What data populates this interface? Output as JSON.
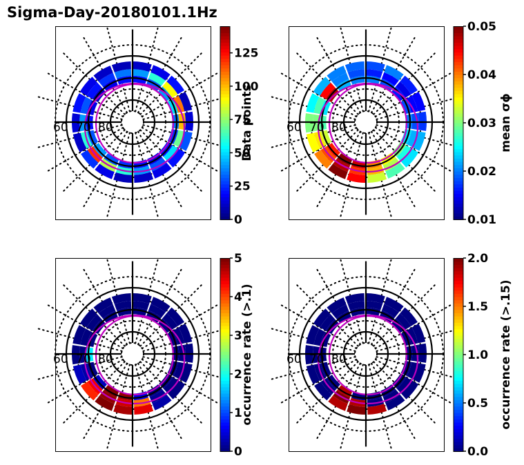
{
  "figure": {
    "title": "Sigma-Day-20180101.1Hz"
  },
  "chart_data": [
    {
      "type": "heatmap",
      "projection": "polar (magnetic latitude / MLT)",
      "title": "",
      "colorbar": {
        "label": "Data points",
        "colormap": "jet",
        "range": [
          0,
          145
        ],
        "ticks": [
          0,
          25,
          50,
          75,
          100,
          125
        ],
        "tick_labels": [
          "0",
          "25",
          "50",
          "75",
          "100",
          "125"
        ]
      },
      "lat_labels": [
        "60",
        "70",
        "80"
      ],
      "lat_circles": [
        50,
        60,
        70,
        80
      ],
      "oval_contours": 2,
      "bins": {
        "outer_ring": [
          10,
          15,
          20,
          8,
          12,
          30,
          20,
          15,
          10,
          8,
          15,
          25,
          10,
          12,
          20,
          15,
          10,
          8
        ],
        "mid_ring": [
          40,
          60,
          90,
          110,
          100,
          70,
          50,
          30,
          40,
          60,
          80,
          120,
          60,
          40,
          30,
          20,
          25,
          35
        ],
        "inner_ring": [
          20,
          30,
          40,
          50,
          35,
          25,
          20,
          15,
          20,
          25,
          30,
          40,
          30,
          20,
          15,
          10,
          15,
          20
        ]
      }
    },
    {
      "type": "heatmap",
      "projection": "polar (magnetic latitude / MLT)",
      "title": "",
      "colorbar": {
        "label": "mean σϕ",
        "colormap": "jet",
        "range": [
          0.01,
          0.05
        ],
        "ticks": [
          0.01,
          0.02,
          0.03,
          0.04,
          0.05
        ],
        "tick_labels": [
          "0.01",
          "0.02",
          "0.03",
          "0.04",
          "0.05"
        ]
      },
      "lat_labels": [
        "60",
        "70",
        "80"
      ],
      "lat_circles": [
        50,
        60,
        70,
        80
      ],
      "oval_contours": 2,
      "bins": {
        "outer_ring": [
          0.018,
          0.02,
          0.016,
          0.015,
          0.017,
          0.022,
          0.024,
          0.028,
          0.033,
          0.045,
          0.05,
          0.04,
          0.035,
          0.03,
          0.025,
          0.022,
          0.02,
          0.019
        ],
        "mid_ring": [
          0.016,
          0.015,
          0.014,
          0.015,
          0.018,
          0.022,
          0.026,
          0.032,
          0.038,
          0.043,
          0.048,
          0.042,
          0.036,
          0.03,
          0.028,
          0.045,
          0.02,
          0.018
        ],
        "inner_ring": [
          0.02,
          0.018,
          0.016,
          0.018,
          0.02,
          0.024,
          0.03,
          0.035,
          0.04,
          0.047,
          0.05,
          0.044,
          0.033,
          0.028,
          0.024,
          0.048,
          0.022,
          0.02
        ]
      }
    },
    {
      "type": "heatmap",
      "projection": "polar (magnetic latitude / MLT)",
      "title": "",
      "colorbar": {
        "label": "occurrence rate (>.1)",
        "colormap": "jet",
        "range": [
          0,
          5
        ],
        "ticks": [
          0,
          1,
          2,
          3,
          4,
          5
        ],
        "tick_labels": [
          "0",
          "1",
          "2",
          "3",
          "4",
          "5"
        ]
      },
      "lat_labels": [
        "60",
        "70",
        "80"
      ],
      "lat_circles": [
        50,
        60,
        70,
        80
      ],
      "oval_contours": 2,
      "bins": {
        "outer_ring": [
          0,
          0,
          0,
          0,
          0,
          0,
          0,
          0.2,
          4.5,
          4.8,
          5,
          4.2,
          0.3,
          0,
          0,
          0,
          0,
          0
        ],
        "mid_ring": [
          0,
          0,
          0,
          0,
          0,
          0,
          0,
          0.1,
          3.8,
          4.6,
          4.9,
          4.4,
          0.2,
          0,
          0,
          0,
          0,
          0
        ],
        "inner_ring": [
          0,
          0,
          0,
          0,
          0,
          0,
          0,
          0,
          0.5,
          4.9,
          5,
          0.3,
          0,
          1.8,
          0,
          0,
          0,
          0
        ]
      }
    },
    {
      "type": "heatmap",
      "projection": "polar (magnetic latitude / MLT)",
      "title": "",
      "colorbar": {
        "label": "occurrence rate (>.15)",
        "colormap": "jet",
        "range": [
          0,
          2
        ],
        "ticks": [
          0,
          0.5,
          1,
          1.5,
          2
        ],
        "tick_labels": [
          "0.0",
          "0.5",
          "1.0",
          "1.5",
          "2.0"
        ]
      },
      "lat_labels": [
        "60",
        "70",
        "80"
      ],
      "lat_circles": [
        50,
        60,
        70,
        80
      ],
      "oval_contours": 2,
      "bins": {
        "outer_ring": [
          0,
          0,
          0,
          0,
          0,
          0,
          0,
          0,
          1.9,
          2,
          1.9,
          0,
          0,
          0,
          0,
          0,
          0,
          0
        ],
        "mid_ring": [
          0,
          0,
          0,
          0,
          0,
          0,
          0,
          0,
          0,
          1.9,
          2,
          0,
          0,
          0,
          0,
          0,
          0,
          0
        ],
        "inner_ring": [
          0,
          0,
          0,
          0,
          0,
          0,
          0,
          0,
          0,
          0,
          1.9,
          0,
          0,
          0,
          0,
          0,
          0,
          0
        ]
      }
    }
  ]
}
